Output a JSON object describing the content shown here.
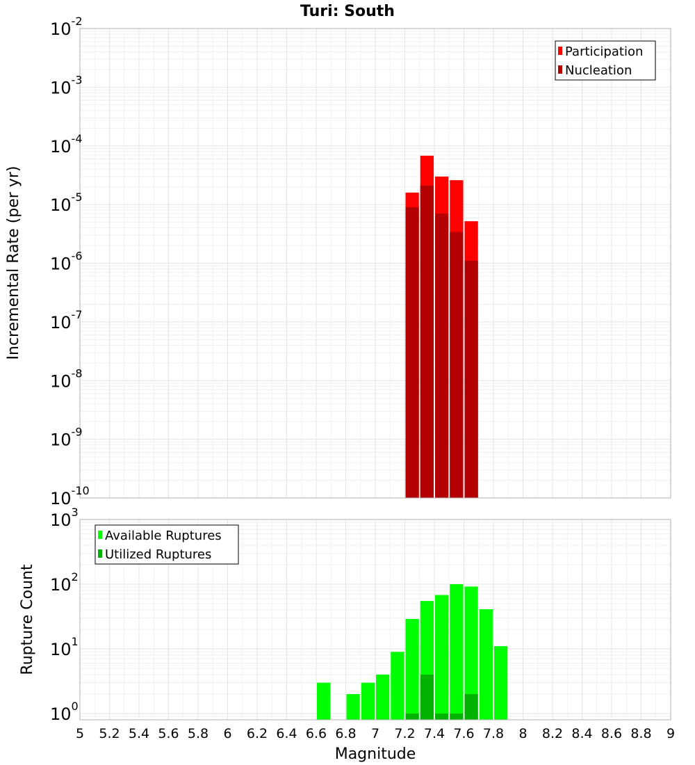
{
  "chart_data": {
    "title": "Turi: South",
    "xlabel": "Magnitude",
    "x_ticks": [
      "5",
      "5.2",
      "5.4",
      "5.6",
      "5.8",
      "6",
      "6.2",
      "6.4",
      "6.6",
      "6.8",
      "7",
      "7.2",
      "7.4",
      "7.6",
      "7.8",
      "8",
      "8.2",
      "8.4",
      "8.6",
      "8.8",
      "9"
    ],
    "xlim": [
      5,
      9
    ],
    "panels": [
      {
        "type": "bar",
        "scale": "log",
        "ylabel": "Incremental Rate (per yr)",
        "ylim": [
          1e-10,
          0.01
        ],
        "y_ticks": [
          {
            "base": "10",
            "exp": "-10"
          },
          {
            "base": "10",
            "exp": "-9"
          },
          {
            "base": "10",
            "exp": "-8"
          },
          {
            "base": "10",
            "exp": "-7"
          },
          {
            "base": "10",
            "exp": "-6"
          },
          {
            "base": "10",
            "exp": "-5"
          },
          {
            "base": "10",
            "exp": "-4"
          },
          {
            "base": "10",
            "exp": "-3"
          },
          {
            "base": "10",
            "exp": "-2"
          }
        ],
        "legend_position": "top-right",
        "series": [
          {
            "name": "Participation",
            "color": "#ff0000",
            "x": [
              7.25,
              7.35,
              7.45,
              7.55,
              7.65
            ],
            "values": [
              1.6e-05,
              6.8e-05,
              3e-05,
              2.6e-05,
              5.2e-06
            ]
          },
          {
            "name": "Nucleation",
            "color": "#b30000",
            "x": [
              7.25,
              7.35,
              7.45,
              7.55,
              7.65
            ],
            "values": [
              9e-06,
              2.1e-05,
              7e-06,
              3.4e-06,
              1.1e-06
            ]
          }
        ]
      },
      {
        "type": "bar",
        "scale": "log",
        "ylabel": "Rupture Count",
        "ylim": [
          0.8,
          1000
        ],
        "y_ticks": [
          {
            "base": "10",
            "exp": "0"
          },
          {
            "base": "10",
            "exp": "1"
          },
          {
            "base": "10",
            "exp": "2"
          },
          {
            "base": "10",
            "exp": "3"
          }
        ],
        "legend_position": "top-left",
        "series": [
          {
            "name": "Available Ruptures",
            "color": "#00ff00",
            "x": [
              6.65,
              6.85,
              6.95,
              7.05,
              7.15,
              7.25,
              7.35,
              7.45,
              7.55,
              7.65,
              7.75,
              7.85
            ],
            "values": [
              3,
              2,
              3,
              4,
              9,
              29,
              55,
              68,
              100,
              92,
              41,
              11
            ]
          },
          {
            "name": "Utilized Ruptures",
            "color": "#00b300",
            "x": [
              7.25,
              7.35,
              7.45,
              7.55,
              7.65
            ],
            "values": [
              1,
              4,
              1,
              1,
              2
            ]
          }
        ]
      }
    ]
  }
}
